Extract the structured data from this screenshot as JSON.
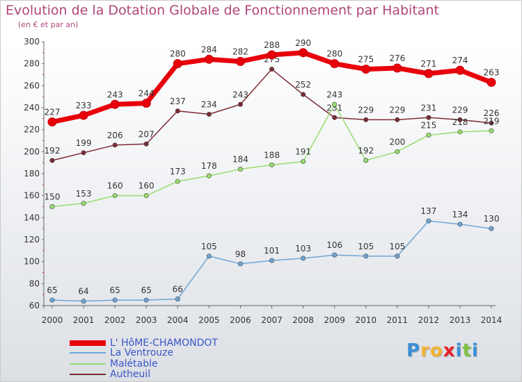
{
  "chart_data": {
    "type": "line",
    "title": "Evolution de la Dotation Globale de Fonctionnement par Habitant",
    "subtitle": "(en € et par an)",
    "categories": [
      "2000",
      "2001",
      "2002",
      "2003",
      "2004",
      "2005",
      "2006",
      "2007",
      "2008",
      "2009",
      "2010",
      "2011",
      "2012",
      "2013",
      "2014"
    ],
    "ylim": [
      60,
      300
    ],
    "yticks": [
      60,
      80,
      100,
      120,
      140,
      160,
      180,
      200,
      220,
      240,
      260,
      280,
      300
    ],
    "grid": false,
    "legend_position": "bottom-left",
    "series": [
      {
        "name": "L' HôME-CHAMONDOT",
        "color": "#e8000b",
        "values": [
          227,
          233,
          243,
          244,
          280,
          284,
          282,
          288,
          290,
          280,
          275,
          276,
          271,
          274,
          263
        ],
        "labels": [
          "227",
          "233",
          "243",
          "244",
          "280",
          "284",
          "282",
          "288",
          "290",
          "280",
          "275",
          "276",
          "271",
          "274",
          "263"
        ]
      },
      {
        "name": "La Ventrouze",
        "color": "#6ea6d6",
        "values": [
          65,
          64,
          65,
          65,
          66,
          105,
          98,
          101,
          103,
          106,
          105,
          105,
          137,
          134,
          130
        ],
        "labels": [
          "65",
          "64",
          "65",
          "65",
          "66",
          "105",
          "98",
          "101",
          "103",
          "106",
          "105",
          "105",
          "137",
          "134",
          "130"
        ]
      },
      {
        "name": "Malétable",
        "color": "#98dd6e",
        "values": [
          150,
          153,
          160,
          160,
          173,
          178,
          184,
          188,
          191,
          243,
          192,
          200,
          215,
          218,
          219
        ],
        "labels": [
          "150",
          "153",
          "160",
          "160",
          "173",
          "178",
          "184",
          "188",
          "191",
          "243",
          "192",
          "200",
          "215",
          "218",
          "219"
        ]
      },
      {
        "name": "Autheuil",
        "color": "#7d2b33",
        "values": [
          192,
          199,
          206,
          207,
          237,
          234,
          243,
          275,
          252,
          231,
          229,
          229,
          231,
          229,
          226
        ],
        "labels": [
          "192",
          "199",
          "206",
          "207",
          "237",
          "234",
          "243",
          "275",
          "252",
          "231",
          "229",
          "229",
          "231",
          "229",
          "226"
        ]
      }
    ]
  },
  "logo": {
    "letters": [
      "P",
      "r",
      "o",
      "x",
      "i",
      "t",
      "i"
    ],
    "colors": [
      "#3a8fd8",
      "#f2b233",
      "#f2b233",
      "#e8212a",
      "#3a8fd8",
      "#7cc243",
      "#3a8fd8"
    ]
  }
}
